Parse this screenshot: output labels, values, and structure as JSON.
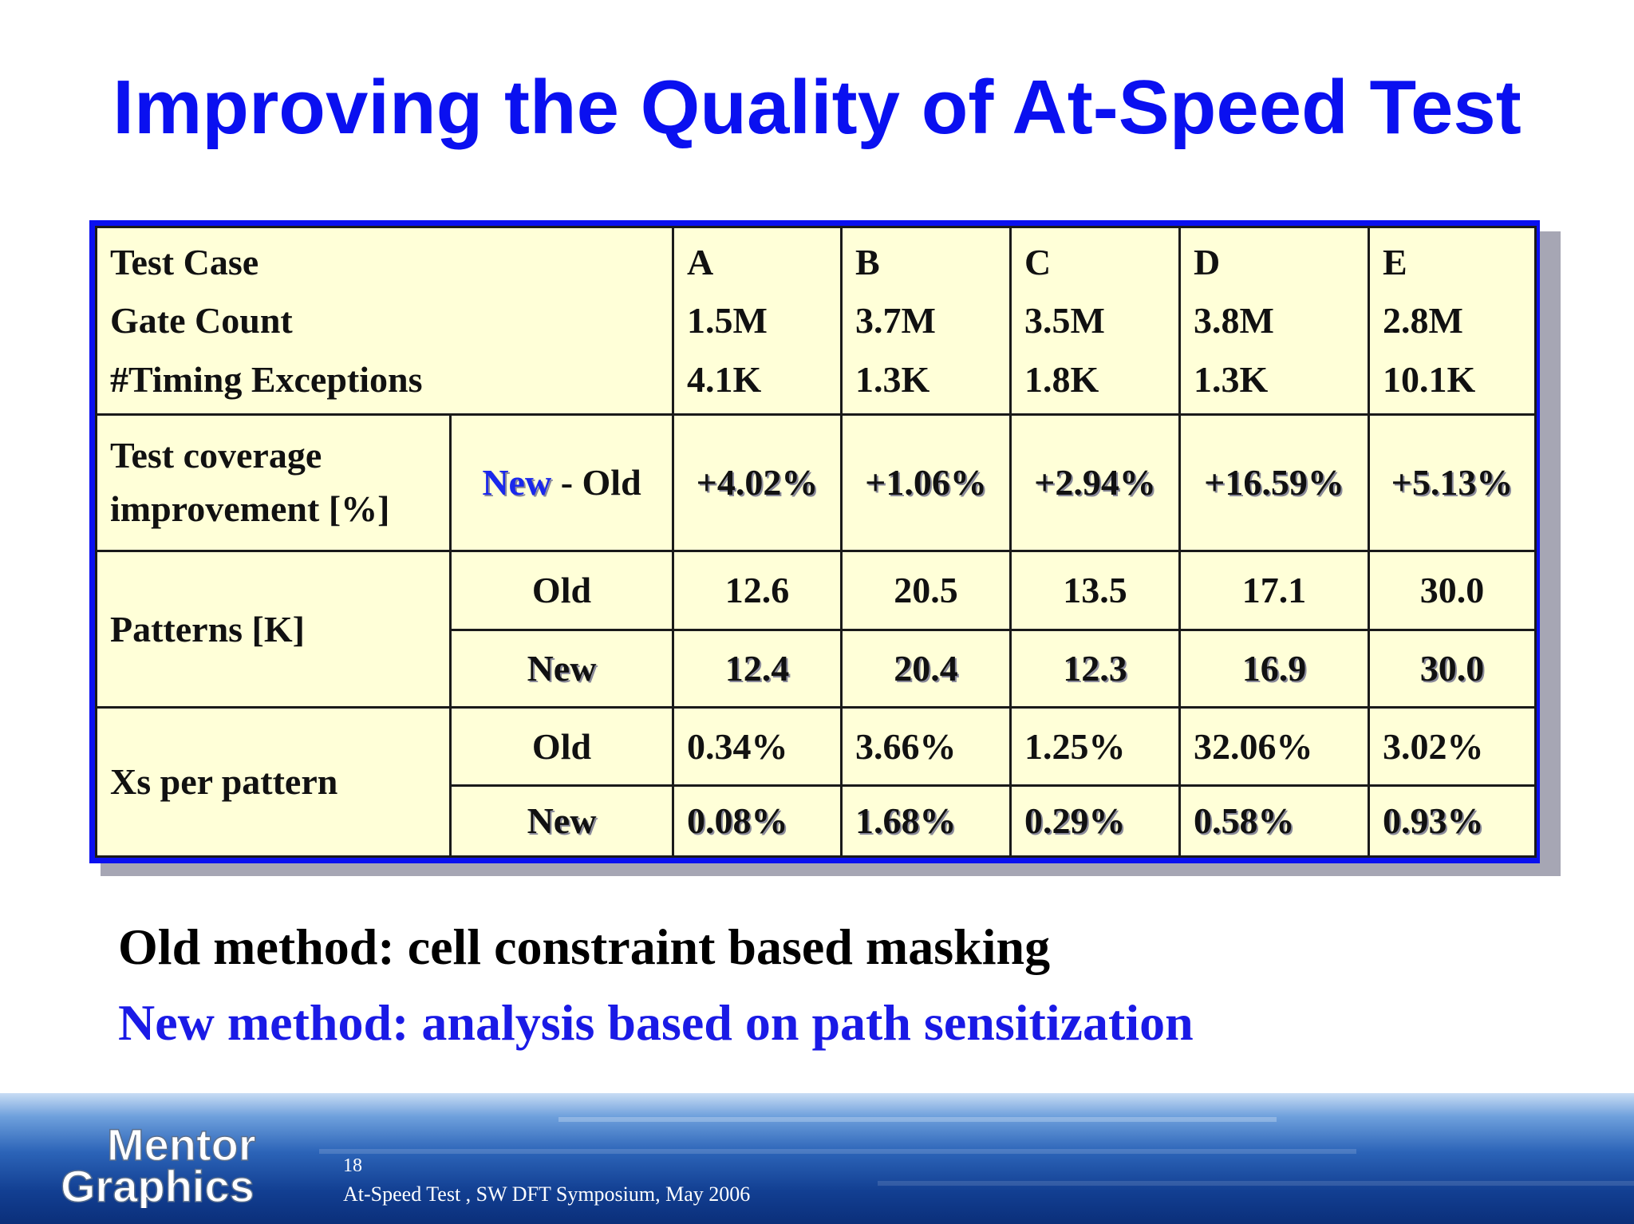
{
  "title": "Improving the Quality of At-Speed Test",
  "table": {
    "header_labels": [
      "Test Case",
      "Gate Count",
      "#Timing Exceptions"
    ],
    "cases": [
      {
        "name": "A",
        "gate_count": "1.5M",
        "timing_exceptions": "4.1K"
      },
      {
        "name": "B",
        "gate_count": "3.7M",
        "timing_exceptions": "1.3K"
      },
      {
        "name": "C",
        "gate_count": "3.5M",
        "timing_exceptions": "1.8K"
      },
      {
        "name": "D",
        "gate_count": "3.8M",
        "timing_exceptions": "1.3K"
      },
      {
        "name": "E",
        "gate_count": "2.8M",
        "timing_exceptions": "10.1K"
      }
    ],
    "coverage": {
      "label_line1": "Test coverage",
      "label_line2": "improvement [%]",
      "sub_new": "New",
      "sub_rest": " - Old",
      "values": [
        "+4.02%",
        "+1.06%",
        "+2.94%",
        "+16.59%",
        "+5.13%"
      ]
    },
    "patterns": {
      "label": "Patterns [K]",
      "old_label": "Old",
      "old_values": [
        "12.6",
        "20.5",
        "13.5",
        "17.1",
        "30.0"
      ],
      "new_label": "New",
      "new_values": [
        "12.4",
        "20.4",
        "12.3",
        "16.9",
        "30.0"
      ]
    },
    "xs": {
      "label": "Xs per pattern",
      "old_label": "Old",
      "old_values": [
        "0.34%",
        "3.66%",
        "1.25%",
        "32.06%",
        "3.02%"
      ],
      "new_label": "New",
      "new_values": [
        "0.08%",
        "1.68%",
        "0.29%",
        "0.58%",
        "0.93%"
      ]
    }
  },
  "captions": {
    "old": "Old method: cell constraint based masking",
    "new": "New method: analysis based on path sensitization"
  },
  "footer": {
    "logo_line1": "Mentor",
    "logo_line2": "Graphics",
    "page_number": "18",
    "text": "At-Speed Test , SW DFT Symposium, May 2006"
  },
  "colors": {
    "title_blue": "#0a10f0",
    "table_bg": "#ffffd8",
    "new_blue": "#1a28ec"
  }
}
